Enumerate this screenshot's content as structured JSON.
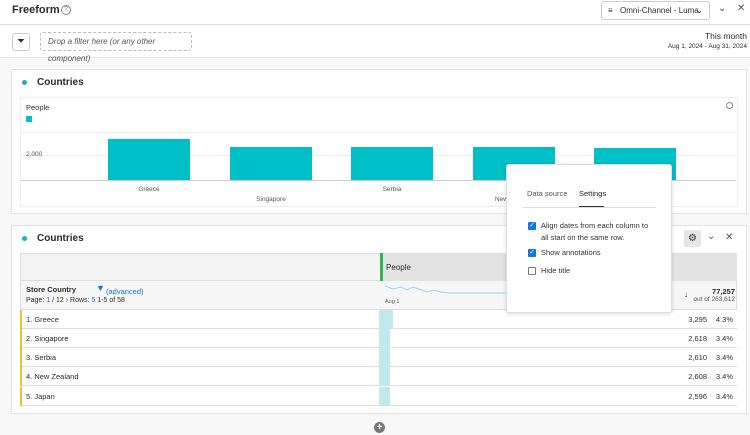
{
  "header": {
    "title": "Freeform",
    "help_icon": "help-icon",
    "data_view": "Omni-Channel - Luma"
  },
  "filter_bar": {
    "drop_placeholder": "Drop a filter here (or any other component)",
    "date_label": "This month",
    "date_range": "Aug 1, 2024 - Aug 31, 2024"
  },
  "chart_panel": {
    "title": "Countries",
    "chart_data": {
      "type": "bar",
      "categories": [
        "Greece",
        "Singapore",
        "Serbia",
        "New Zealand",
        "Japan"
      ],
      "series": [
        {
          "name": "People",
          "values": [
            3295,
            2618,
            2610,
            2608,
            2596
          ]
        }
      ],
      "yticks": [
        "2,000"
      ],
      "ylim": [
        0,
        4000
      ],
      "color": "#00c0c7",
      "legend": "top-left"
    }
  },
  "table_panel": {
    "title": "Countries",
    "metric_header": "People",
    "dimension": "Store Country",
    "filter_link": "(advanced)",
    "page_label": "Page:",
    "page_current": "1",
    "page_total": "/ 12",
    "rows_label": "Rows:",
    "rows_count": "5",
    "range": "1-5 of 58",
    "spark_label": "Aug 1",
    "total": "77,257",
    "total_of": "out of 263,612",
    "rows": [
      {
        "name": "1. Greece",
        "value": "3,295",
        "pct": "4.3%",
        "share": 0.043
      },
      {
        "name": "2. Singapore",
        "value": "2,618",
        "pct": "3.4%",
        "share": 0.034
      },
      {
        "name": "3. Serbia",
        "value": "2,610",
        "pct": "3.4%",
        "share": 0.034
      },
      {
        "name": "4. New Zealand",
        "value": "2,608",
        "pct": "3.4%",
        "share": 0.034
      },
      {
        "name": "5. Japan",
        "value": "2,596",
        "pct": "3.4%",
        "share": 0.034
      }
    ]
  },
  "settings_popover": {
    "tabs": [
      "Data source",
      "Settings"
    ],
    "active_tab": "Settings",
    "options": [
      {
        "label": "Align dates from each column to all start on the same row.",
        "checked": true
      },
      {
        "label": "Show annotations",
        "checked": true
      },
      {
        "label": "Hide title",
        "checked": false
      }
    ]
  }
}
